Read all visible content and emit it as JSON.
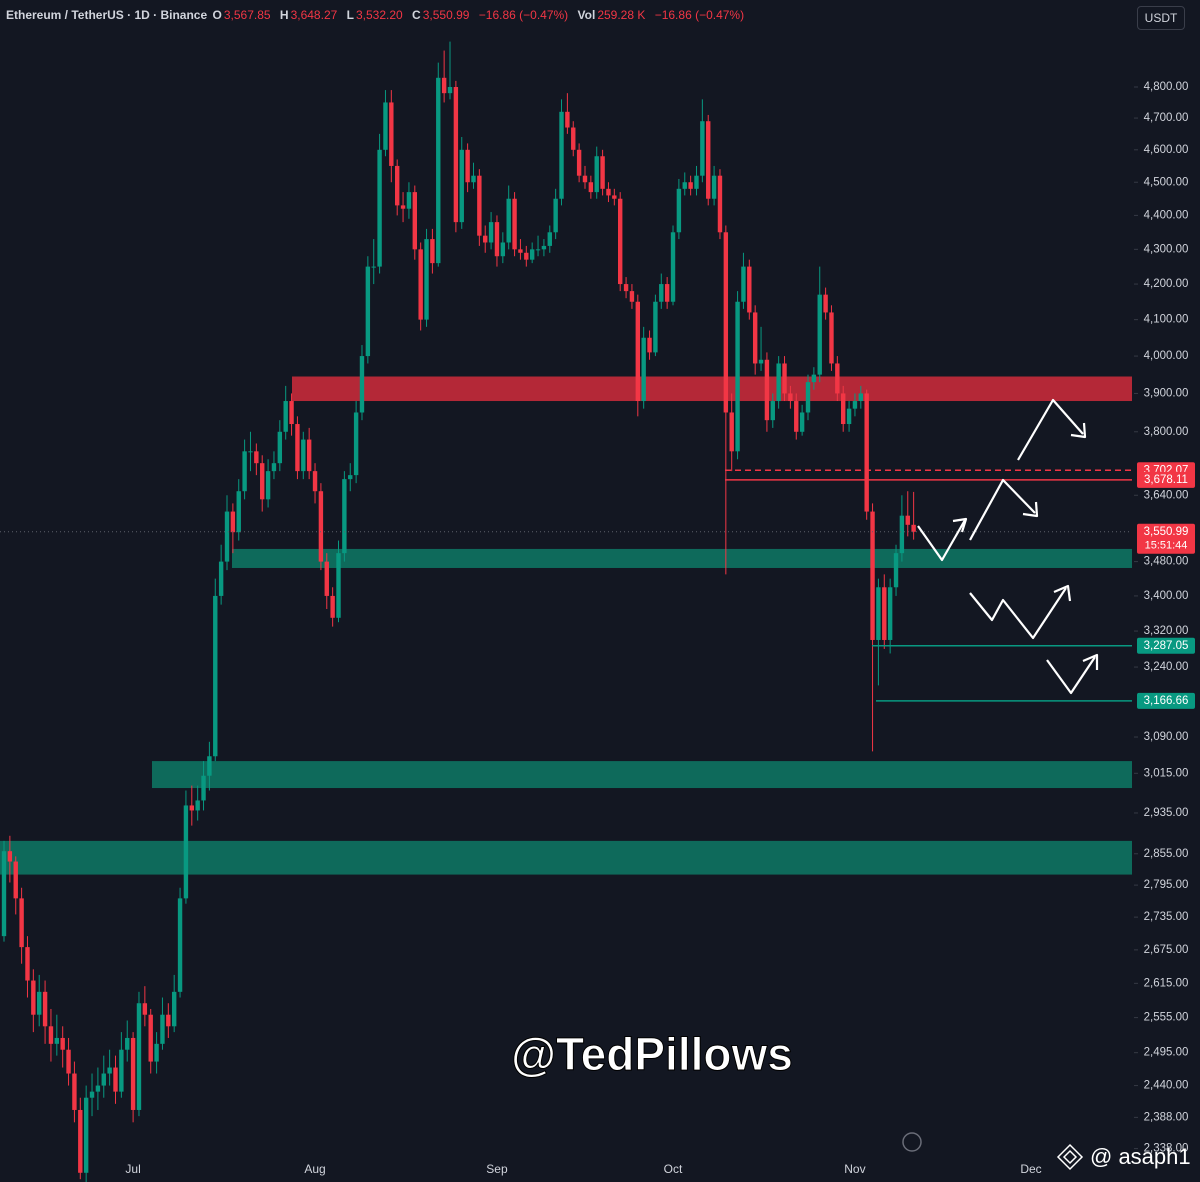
{
  "header": {
    "symbol": "Ethereum / TetherUS · 1D · Binance",
    "o_key": "O",
    "o": "3,567.85",
    "h_key": "H",
    "h": "3,648.27",
    "l_key": "L",
    "l": "3,532.20",
    "c_key": "C",
    "c": "3,550.99",
    "change": "−16.86 (−0.47%)",
    "vol_key": "Vol",
    "vol": "259.28 K",
    "vol_change": "−16.86 (−0.47%)",
    "currency": "USDT"
  },
  "chart_data": {
    "type": "candlestick",
    "log_scale": true,
    "grid": false,
    "up_color": "#089981",
    "down_color": "#f23645",
    "ylim": [
      2320,
      4989
    ],
    "yticks": [
      {
        "value": 4800,
        "label": "4,800.00"
      },
      {
        "value": 4700,
        "label": "4,700.00"
      },
      {
        "value": 4600,
        "label": "4,600.00"
      },
      {
        "value": 4500,
        "label": "4,500.00"
      },
      {
        "value": 4400,
        "label": "4,400.00"
      },
      {
        "value": 4300,
        "label": "4,300.00"
      },
      {
        "value": 4200,
        "label": "4,200.00"
      },
      {
        "value": 4100,
        "label": "4,100.00"
      },
      {
        "value": 4000,
        "label": "4,000.00"
      },
      {
        "value": 3900,
        "label": "3,900.00"
      },
      {
        "value": 3800,
        "label": "3,800.00"
      },
      {
        "value": 3640,
        "label": "3,640.00"
      },
      {
        "value": 3480,
        "label": "3,480.00"
      },
      {
        "value": 3400,
        "label": "3,400.00"
      },
      {
        "value": 3320,
        "label": "3,320.00"
      },
      {
        "value": 3240,
        "label": "3,240.00"
      },
      {
        "value": 3090,
        "label": "3,090.00"
      },
      {
        "value": 3015,
        "label": "3,015.00"
      },
      {
        "value": 2935,
        "label": "2,935.00"
      },
      {
        "value": 2855,
        "label": "2,855.00"
      },
      {
        "value": 2795,
        "label": "2,795.00"
      },
      {
        "value": 2735,
        "label": "2,735.00"
      },
      {
        "value": 2675,
        "label": "2,675.00"
      },
      {
        "value": 2615,
        "label": "2,615.00"
      },
      {
        "value": 2555,
        "label": "2,555.00"
      },
      {
        "value": 2495,
        "label": "2,495.00"
      },
      {
        "value": 2440,
        "label": "2,440.00"
      },
      {
        "value": 2388,
        "label": "2,388.00"
      },
      {
        "value": 2338,
        "label": "2,338.00"
      }
    ],
    "categories": [
      null,
      null,
      null,
      null,
      null,
      null,
      null,
      null,
      null,
      null,
      null,
      null,
      null,
      null,
      null,
      null,
      null,
      null,
      null,
      null,
      null,
      null,
      "Jul",
      null,
      null,
      null,
      null,
      null,
      null,
      null,
      null,
      null,
      null,
      null,
      null,
      null,
      null,
      null,
      null,
      null,
      null,
      null,
      null,
      null,
      null,
      null,
      null,
      null,
      null,
      null,
      null,
      null,
      null,
      "Aug",
      null,
      null,
      null,
      null,
      null,
      null,
      null,
      null,
      null,
      null,
      null,
      null,
      null,
      null,
      null,
      null,
      null,
      null,
      null,
      null,
      null,
      null,
      null,
      null,
      null,
      null,
      null,
      null,
      null,
      null,
      "Sep",
      null,
      null,
      null,
      null,
      null,
      null,
      null,
      null,
      null,
      null,
      null,
      null,
      null,
      null,
      null,
      null,
      null,
      null,
      null,
      null,
      null,
      null,
      null,
      null,
      null,
      null,
      null,
      null,
      null,
      "Oct",
      null,
      null,
      null,
      null,
      null,
      null,
      null,
      null,
      null,
      null,
      null,
      null,
      null,
      null,
      null,
      null,
      null,
      null,
      null,
      null,
      null,
      null,
      null,
      null,
      null,
      null,
      null,
      null,
      null,
      null,
      "Nov",
      null,
      null,
      null,
      null,
      null,
      null,
      null,
      null,
      null,
      null,
      null,
      null,
      null,
      null,
      null,
      null,
      null,
      null,
      null,
      null,
      null,
      null,
      null,
      null,
      null,
      null,
      null,
      null,
      null,
      "Dec"
    ],
    "ohlc": [
      [
        2700,
        2880,
        2690,
        2860
      ],
      [
        2860,
        2890,
        2800,
        2840
      ],
      [
        2840,
        2850,
        2740,
        2770
      ],
      [
        2770,
        2790,
        2650,
        2680
      ],
      [
        2680,
        2700,
        2590,
        2620
      ],
      [
        2620,
        2640,
        2530,
        2560
      ],
      [
        2560,
        2630,
        2540,
        2600
      ],
      [
        2600,
        2620,
        2510,
        2540
      ],
      [
        2540,
        2570,
        2480,
        2510
      ],
      [
        2510,
        2560,
        2490,
        2520
      ],
      [
        2520,
        2540,
        2470,
        2500
      ],
      [
        2500,
        2520,
        2440,
        2460
      ],
      [
        2460,
        2480,
        2380,
        2400
      ],
      [
        2400,
        2420,
        2290,
        2300
      ],
      [
        2300,
        2440,
        2280,
        2420
      ],
      [
        2420,
        2460,
        2390,
        2430
      ],
      [
        2430,
        2470,
        2400,
        2440
      ],
      [
        2440,
        2490,
        2420,
        2460
      ],
      [
        2460,
        2500,
        2440,
        2470
      ],
      [
        2470,
        2490,
        2410,
        2430
      ],
      [
        2430,
        2530,
        2420,
        2500
      ],
      [
        2500,
        2550,
        2480,
        2520
      ],
      [
        2520,
        2530,
        2380,
        2400
      ],
      [
        2400,
        2600,
        2390,
        2580
      ],
      [
        2580,
        2610,
        2540,
        2560
      ],
      [
        2560,
        2570,
        2460,
        2480
      ],
      [
        2480,
        2530,
        2460,
        2510
      ],
      [
        2510,
        2590,
        2500,
        2560
      ],
      [
        2560,
        2580,
        2520,
        2540
      ],
      [
        2540,
        2630,
        2530,
        2600
      ],
      [
        2600,
        2790,
        2590,
        2770
      ],
      [
        2770,
        2980,
        2760,
        2950
      ],
      [
        2950,
        2990,
        2910,
        2940
      ],
      [
        2940,
        2990,
        2920,
        2960
      ],
      [
        2960,
        3040,
        2940,
        3010
      ],
      [
        3010,
        3080,
        2980,
        3050
      ],
      [
        3050,
        3440,
        3040,
        3400
      ],
      [
        3400,
        3520,
        3380,
        3480
      ],
      [
        3480,
        3640,
        3460,
        3600
      ],
      [
        3600,
        3620,
        3500,
        3550
      ],
      [
        3550,
        3680,
        3530,
        3650
      ],
      [
        3650,
        3780,
        3630,
        3750
      ],
      [
        3750,
        3800,
        3700,
        3750
      ],
      [
        3750,
        3770,
        3690,
        3720
      ],
      [
        3720,
        3740,
        3600,
        3630
      ],
      [
        3630,
        3730,
        3610,
        3700
      ],
      [
        3700,
        3750,
        3680,
        3720
      ],
      [
        3720,
        3830,
        3700,
        3800
      ],
      [
        3800,
        3920,
        3780,
        3880
      ],
      [
        3880,
        3900,
        3790,
        3820
      ],
      [
        3820,
        3840,
        3680,
        3700
      ],
      [
        3700,
        3800,
        3680,
        3780
      ],
      [
        3780,
        3810,
        3680,
        3700
      ],
      [
        3700,
        3720,
        3620,
        3650
      ],
      [
        3650,
        3670,
        3460,
        3480
      ],
      [
        3480,
        3500,
        3370,
        3400
      ],
      [
        3400,
        3420,
        3330,
        3350
      ],
      [
        3350,
        3530,
        3340,
        3500
      ],
      [
        3500,
        3700,
        3480,
        3680
      ],
      [
        3680,
        3720,
        3650,
        3690
      ],
      [
        3690,
        3880,
        3670,
        3850
      ],
      [
        3850,
        4030,
        3830,
        4000
      ],
      [
        4000,
        4280,
        3980,
        4250
      ],
      [
        4250,
        4330,
        4200,
        4250
      ],
      [
        4250,
        4650,
        4230,
        4600
      ],
      [
        4600,
        4790,
        4580,
        4750
      ],
      [
        4750,
        4790,
        4500,
        4550
      ],
      [
        4550,
        4570,
        4400,
        4430
      ],
      [
        4430,
        4470,
        4380,
        4420
      ],
      [
        4420,
        4500,
        4390,
        4470
      ],
      [
        4470,
        4490,
        4270,
        4300
      ],
      [
        4300,
        4320,
        4070,
        4100
      ],
      [
        4100,
        4360,
        4080,
        4330
      ],
      [
        4330,
        4360,
        4230,
        4260
      ],
      [
        4260,
        4880,
        4250,
        4830
      ],
      [
        4830,
        4920,
        4750,
        4780
      ],
      [
        4780,
        4950,
        4760,
        4800
      ],
      [
        4800,
        4820,
        4350,
        4380
      ],
      [
        4380,
        4640,
        4360,
        4600
      ],
      [
        4600,
        4620,
        4470,
        4500
      ],
      [
        4500,
        4560,
        4480,
        4520
      ],
      [
        4520,
        4540,
        4310,
        4340
      ],
      [
        4340,
        4370,
        4290,
        4320
      ],
      [
        4320,
        4410,
        4300,
        4380
      ],
      [
        4380,
        4400,
        4250,
        4280
      ],
      [
        4280,
        4350,
        4260,
        4320
      ],
      [
        4320,
        4490,
        4300,
        4450
      ],
      [
        4450,
        4470,
        4280,
        4300
      ],
      [
        4300,
        4330,
        4270,
        4290
      ],
      [
        4290,
        4310,
        4250,
        4270
      ],
      [
        4270,
        4320,
        4260,
        4300
      ],
      [
        4300,
        4340,
        4280,
        4300
      ],
      [
        4300,
        4330,
        4280,
        4310
      ],
      [
        4310,
        4370,
        4290,
        4350
      ],
      [
        4350,
        4480,
        4330,
        4450
      ],
      [
        4450,
        4760,
        4430,
        4720
      ],
      [
        4720,
        4780,
        4650,
        4670
      ],
      [
        4670,
        4690,
        4580,
        4600
      ],
      [
        4600,
        4620,
        4500,
        4520
      ],
      [
        4520,
        4550,
        4480,
        4500
      ],
      [
        4500,
        4520,
        4450,
        4470
      ],
      [
        4470,
        4610,
        4450,
        4580
      ],
      [
        4580,
        4600,
        4460,
        4480
      ],
      [
        4480,
        4500,
        4440,
        4460
      ],
      [
        4460,
        4480,
        4430,
        4450
      ],
      [
        4450,
        4470,
        4180,
        4200
      ],
      [
        4200,
        4220,
        4160,
        4180
      ],
      [
        4180,
        4200,
        4130,
        4150
      ],
      [
        4150,
        4170,
        3840,
        3880
      ],
      [
        3880,
        4080,
        3860,
        4050
      ],
      [
        4050,
        4070,
        3990,
        4010
      ],
      [
        4010,
        4170,
        4000,
        4150
      ],
      [
        4150,
        4230,
        4130,
        4200
      ],
      [
        4200,
        4220,
        4130,
        4150
      ],
      [
        4150,
        4370,
        4140,
        4350
      ],
      [
        4350,
        4510,
        4330,
        4480
      ],
      [
        4480,
        4530,
        4460,
        4500
      ],
      [
        4500,
        4520,
        4460,
        4480
      ],
      [
        4480,
        4550,
        4460,
        4520
      ],
      [
        4520,
        4760,
        4500,
        4690
      ],
      [
        4690,
        4710,
        4430,
        4450
      ],
      [
        4450,
        4550,
        4430,
        4520
      ],
      [
        4520,
        4540,
        4330,
        4350
      ],
      [
        4350,
        4370,
        3450,
        3850
      ],
      [
        3850,
        3900,
        3700,
        3750
      ],
      [
        3750,
        4180,
        3730,
        4150
      ],
      [
        4150,
        4290,
        4130,
        4250
      ],
      [
        4250,
        4270,
        4100,
        4120
      ],
      [
        4120,
        4140,
        3950,
        3980
      ],
      [
        3980,
        4080,
        3960,
        3990
      ],
      [
        3990,
        4010,
        3800,
        3830
      ],
      [
        3830,
        3900,
        3810,
        3880
      ],
      [
        3880,
        4000,
        3860,
        3980
      ],
      [
        3980,
        4000,
        3880,
        3900
      ],
      [
        3900,
        3920,
        3860,
        3880
      ],
      [
        3880,
        3900,
        3780,
        3800
      ],
      [
        3800,
        3870,
        3790,
        3850
      ],
      [
        3850,
        3950,
        3830,
        3930
      ],
      [
        3930,
        3970,
        3910,
        3950
      ],
      [
        3950,
        4250,
        3930,
        4170
      ],
      [
        4170,
        4190,
        4100,
        4120
      ],
      [
        4120,
        4140,
        3960,
        3980
      ],
      [
        3980,
        4000,
        3880,
        3900
      ],
      [
        3900,
        3920,
        3800,
        3820
      ],
      [
        3820,
        3880,
        3800,
        3860
      ],
      [
        3860,
        3900,
        3840,
        3880
      ],
      [
        3880,
        3920,
        3860,
        3900
      ],
      [
        3900,
        3910,
        3580,
        3600
      ],
      [
        3600,
        3620,
        3060,
        3300
      ],
      [
        3300,
        3440,
        3200,
        3420
      ],
      [
        3420,
        3450,
        3280,
        3300
      ],
      [
        3300,
        3440,
        3270,
        3420
      ],
      [
        3420,
        3520,
        3400,
        3500
      ],
      [
        3500,
        3640,
        3480,
        3590
      ],
      [
        3590,
        3650,
        3540,
        3567.85
      ],
      [
        3567.85,
        3648.27,
        3532.2,
        3550.99
      ],
      null,
      null,
      null,
      null,
      null,
      null,
      null,
      null,
      null,
      null,
      null,
      null,
      null,
      null,
      null,
      null,
      null,
      null,
      null,
      null
    ],
    "zones": [
      {
        "color": "#c22a3a",
        "range": [
          3880,
          3945
        ]
      },
      {
        "color": "#0e7261",
        "range": [
          3465,
          3510
        ]
      },
      {
        "color": "#0e7261",
        "range": [
          2985,
          3040
        ]
      },
      {
        "color": "#0e7261",
        "range": [
          2815,
          2880
        ]
      }
    ],
    "levels": [
      {
        "value": 3702.07,
        "label": "3,702.07",
        "color": "#f23645",
        "dash": true
      },
      {
        "value": 3678.11,
        "label": "3,678.11",
        "color": "#f23645"
      },
      {
        "value": 3550.99,
        "label": "3,550.99",
        "color": "#f23645",
        "countdown": "15:51:44"
      },
      {
        "value": 3287.05,
        "label": "3,287.05",
        "color": "#089981"
      },
      {
        "value": 3166.66,
        "label": "3,166.66",
        "color": "#089981"
      }
    ]
  },
  "watermark": "@TedPillows",
  "credit": "@ asaph1"
}
